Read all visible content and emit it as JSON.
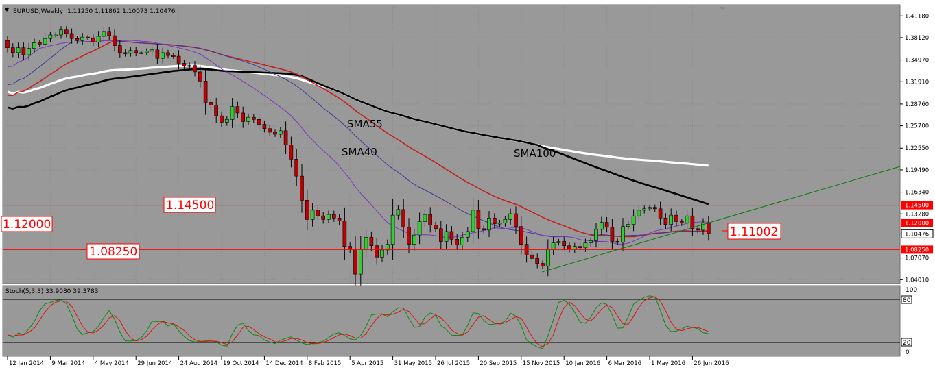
{
  "header": {
    "symbol": "EURUSD,Weekly",
    "ohlc": "1.11250 1.11862 1.10073 1.10476"
  },
  "colors": {
    "background": "#999999",
    "frame": "#ffffff",
    "bull_candle": "#32cd32",
    "bear_candle": "#c00000",
    "sma_fast": "#7a37c0",
    "sma_40": "#3a3a9a",
    "sma_55": "#c81e1e",
    "sma_100": "#000000",
    "sma_200": "#ffffff",
    "level_line": "#ff0000",
    "trend_line": "#0a7a0a",
    "stoch_main": "#0a8a0a",
    "stoch_signal": "#e01010"
  },
  "annotations": {
    "sma55": "SMA55",
    "sma40": "SMA40",
    "sma100": "SMA100",
    "level_1450": "1.14500",
    "level_1200": "1.12000",
    "level_0825": "1.08250",
    "level_1100": "1.11002"
  },
  "stoch": {
    "label": "Stoch(5,3,3) 33.9080 39.3783",
    "scale_100": "100",
    "scale_80": "80",
    "scale_20": "20",
    "scale_0": "0"
  },
  "chart_data": {
    "type": "candlestick",
    "title": "EURUSD,Weekly",
    "ylim": [
      1.0375,
      1.4188
    ],
    "y_ticks": [
      "1.41180",
      "1.38120",
      "1.34970",
      "1.31910",
      "1.28760",
      "1.25700",
      "1.22550",
      "1.19490",
      "1.16340",
      "1.13280",
      "1.10476",
      "1.07070",
      "1.04010"
    ],
    "x_ticks": [
      "12 Jan 2014",
      "9 Mar 2014",
      "4 May 2014",
      "29 Jun 2014",
      "24 Aug 2014",
      "19 Oct 2014",
      "14 Dec 2014",
      "8 Feb 2015",
      "5 Apr 2015",
      "31 May 2015",
      "26 Jul 2015",
      "20 Sep 2015",
      "15 Nov 2015",
      "10 Jan 2016",
      "6 Mar 2016",
      "1 May 2016",
      "26 Jun 2016"
    ],
    "x_tick_weeks": [
      1,
      9,
      17,
      25,
      33,
      41,
      49,
      57,
      65,
      73,
      81,
      89,
      97,
      105,
      113,
      121,
      129
    ],
    "horizontal_levels": [
      1.145,
      1.12,
      1.0825
    ],
    "level_tags": [
      "1.14500",
      "1.12000",
      "1.08250"
    ],
    "current_price": "1.10476",
    "close": [
      1.367,
      1.36,
      1.367,
      1.357,
      1.366,
      1.374,
      1.372,
      1.38,
      1.385,
      1.385,
      1.392,
      1.387,
      1.38,
      1.377,
      1.382,
      1.381,
      1.375,
      1.383,
      1.39,
      1.384,
      1.37,
      1.36,
      1.359,
      1.363,
      1.36,
      1.36,
      1.362,
      1.364,
      1.352,
      1.36,
      1.356,
      1.355,
      1.345,
      1.341,
      1.342,
      1.333,
      1.32,
      1.29,
      1.286,
      1.271,
      1.262,
      1.266,
      1.284,
      1.275,
      1.263,
      1.269,
      1.266,
      1.259,
      1.253,
      1.248,
      1.245,
      1.25,
      1.23,
      1.21,
      1.186,
      1.152,
      1.125,
      1.138,
      1.13,
      1.125,
      1.132,
      1.127,
      1.123,
      1.087,
      1.083,
      1.048,
      1.083,
      1.1,
      1.088,
      1.072,
      1.082,
      1.09,
      1.131,
      1.139,
      1.114,
      1.09,
      1.103,
      1.122,
      1.132,
      1.117,
      1.112,
      1.094,
      1.108,
      1.097,
      1.089,
      1.1,
      1.108,
      1.138,
      1.112,
      1.11,
      1.127,
      1.119,
      1.12,
      1.125,
      1.133,
      1.115,
      1.09,
      1.075,
      1.07,
      1.063,
      1.059,
      1.083,
      1.092,
      1.094,
      1.088,
      1.083,
      1.087,
      1.085,
      1.092,
      1.095,
      1.111,
      1.121,
      1.114,
      1.094,
      1.093,
      1.115,
      1.118,
      1.13,
      1.138,
      1.14,
      1.142,
      1.14,
      1.127,
      1.118,
      1.131,
      1.122,
      1.12,
      1.13,
      1.112,
      1.11,
      1.12,
      1.105
    ]
  }
}
